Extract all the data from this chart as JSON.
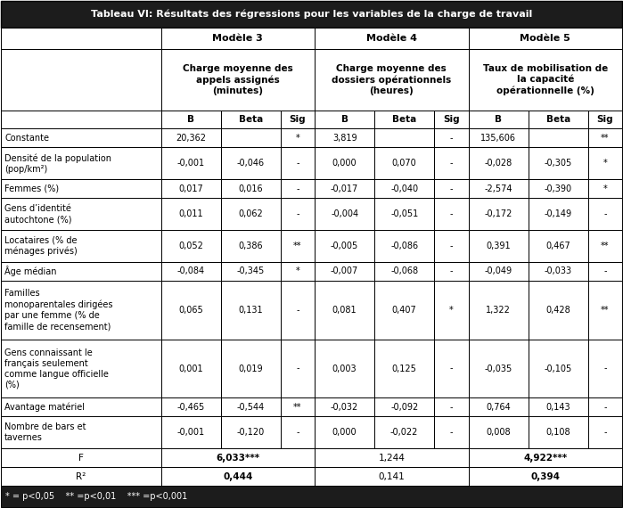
{
  "title": "Tableau VI: Résultats des régressions pour les variables de la charge de travail",
  "models": [
    "Modèle 3",
    "Modèle 4",
    "Modèle 5"
  ],
  "subheaders": [
    "Charge moyenne des\nappels assignés\n(minutes)",
    "Charge moyenne des\ndossiers opérationnels\n(heures)",
    "Taux de mobilisation de\nla capacité\nopérationnelle (%)"
  ],
  "col_headers": [
    "B",
    "Beta",
    "Sig"
  ],
  "rows": [
    {
      "label": "Constante",
      "m3": [
        "20,362",
        "",
        "*"
      ],
      "m4": [
        "3,819",
        "",
        "-"
      ],
      "m5": [
        "135,606",
        "",
        "**"
      ]
    },
    {
      "label": "Densité de la population\n(pop/km²)",
      "m3": [
        "-0,001",
        "-0,046",
        "-"
      ],
      "m4": [
        "0,000",
        "0,070",
        "-"
      ],
      "m5": [
        "-0,028",
        "-0,305",
        "*"
      ]
    },
    {
      "label": "Femmes (%)",
      "m3": [
        "0,017",
        "0,016",
        "-"
      ],
      "m4": [
        "-0,017",
        "-0,040",
        "-"
      ],
      "m5": [
        "-2,574",
        "-0,390",
        "*"
      ]
    },
    {
      "label": "Gens d’identité\nautochtone (%)",
      "m3": [
        "0,011",
        "0,062",
        "-"
      ],
      "m4": [
        "-0,004",
        "-0,051",
        "-"
      ],
      "m5": [
        "-0,172",
        "-0,149",
        "-"
      ]
    },
    {
      "label": "Locataires (% de\nménages privés)",
      "m3": [
        "0,052",
        "0,386",
        "**"
      ],
      "m4": [
        "-0,005",
        "-0,086",
        "-"
      ],
      "m5": [
        "0,391",
        "0,467",
        "**"
      ]
    },
    {
      "label": "Âge médian",
      "m3": [
        "-0,084",
        "-0,345",
        "*"
      ],
      "m4": [
        "-0,007",
        "-0,068",
        "-"
      ],
      "m5": [
        "-0,049",
        "-0,033",
        "-"
      ]
    },
    {
      "label": "Familles\nmonoparentales dirigées\npar une femme (% de\nfamille de recensement)",
      "m3": [
        "0,065",
        "0,131",
        "-"
      ],
      "m4": [
        "0,081",
        "0,407",
        "*"
      ],
      "m5": [
        "1,322",
        "0,428",
        "**"
      ]
    },
    {
      "label": "Gens connaissant le\nfrançais seulement\ncomme langue officielle\n(%)",
      "m3": [
        "0,001",
        "0,019",
        "-"
      ],
      "m4": [
        "0,003",
        "0,125",
        "-"
      ],
      "m5": [
        "-0,035",
        "-0,105",
        "-"
      ]
    },
    {
      "label": "Avantage matériel",
      "m3": [
        "-0,465",
        "-0,544",
        "**"
      ],
      "m4": [
        "-0,032",
        "-0,092",
        "-"
      ],
      "m5": [
        "0,764",
        "0,143",
        "-"
      ]
    },
    {
      "label": "Nombre de bars et\ntavernes",
      "m3": [
        "-0,001",
        "-0,120",
        "-"
      ],
      "m4": [
        "0,000",
        "-0,022",
        "-"
      ],
      "m5": [
        "0,008",
        "0,108",
        "-"
      ]
    }
  ],
  "f_row": {
    "label": "F",
    "m3": "6,033***",
    "m4": "1,244",
    "m5": "4,922***"
  },
  "r2_row": {
    "label": "R²",
    "m3": "0,444",
    "m4": "0,141",
    "m5": "0,394"
  },
  "footnote": "* = p<0,05    ** =p<0,01    *** =p<0,001",
  "title_bg": "#1c1c1c",
  "footnote_bg": "#1c1c1c",
  "cell_bg": "#ffffff",
  "border_color": "#000000"
}
